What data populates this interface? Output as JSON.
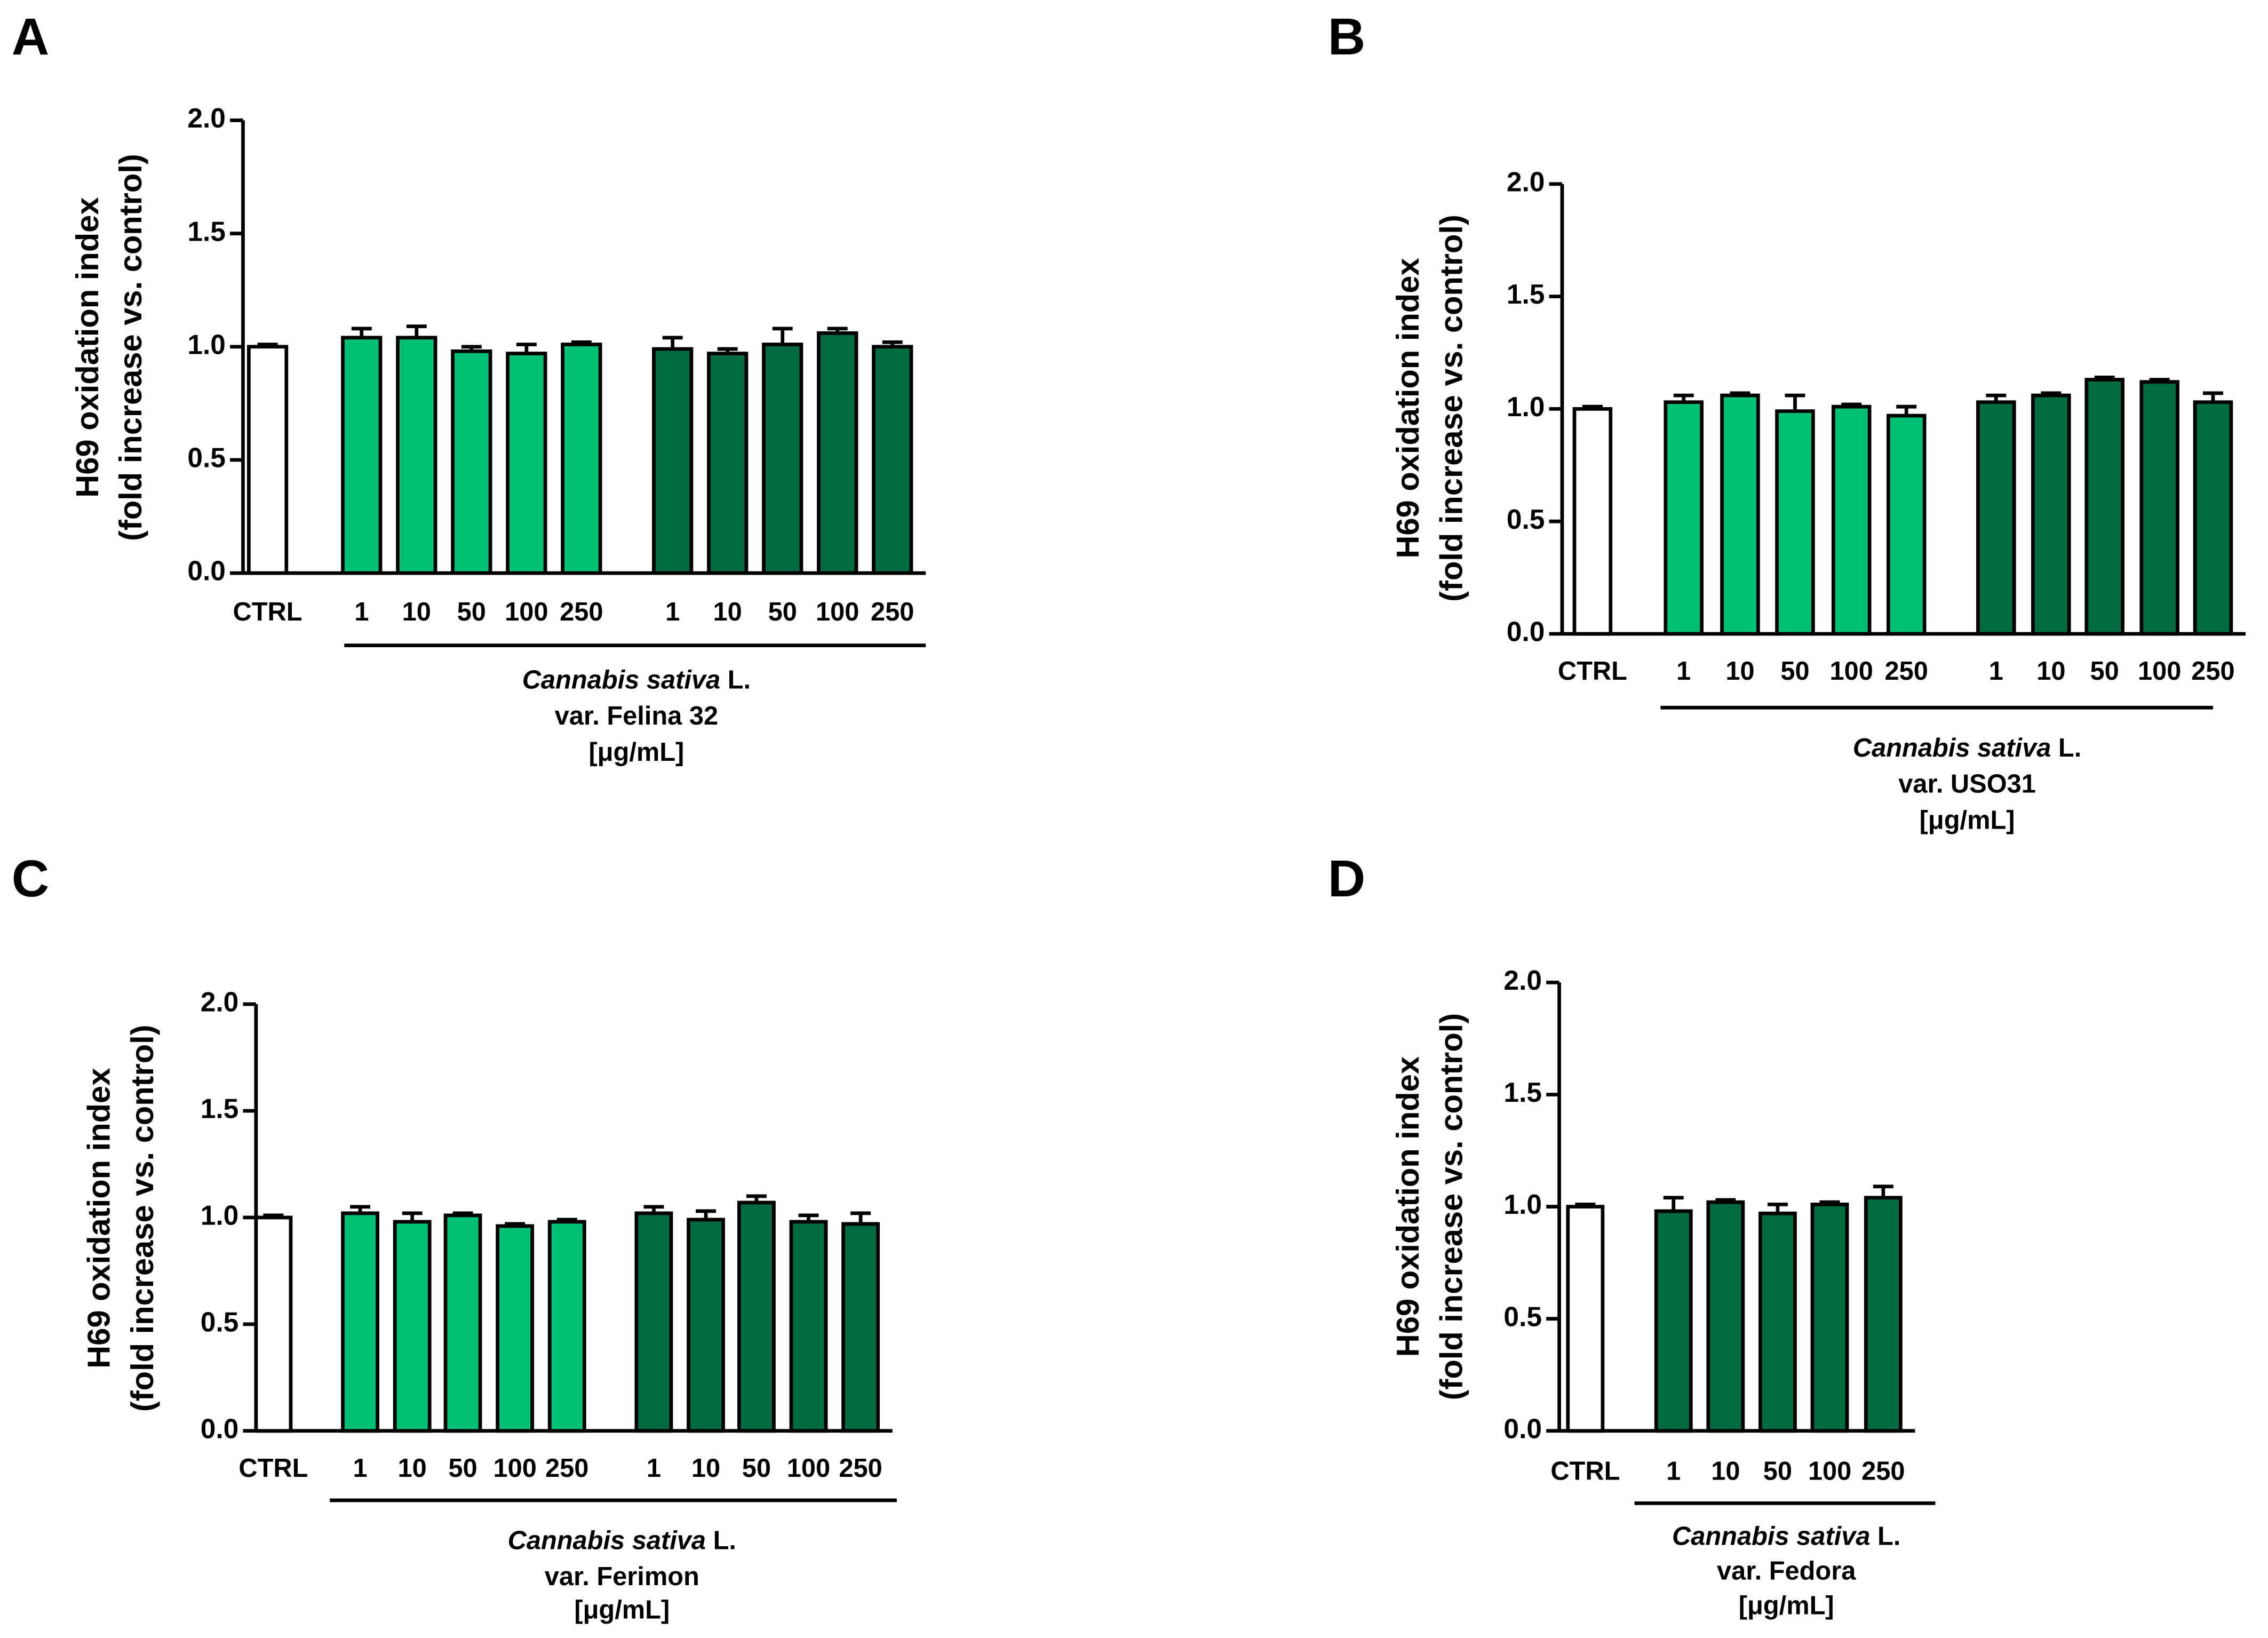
{
  "chart_data": [
    {
      "type": "bar",
      "panel": "A",
      "ylabel": [
        "H69 oxidation index",
        "(fold increase vs. control)"
      ],
      "categories": [
        "CTRL",
        "1",
        "10",
        "50",
        "100",
        "250",
        "1",
        "10",
        "50",
        "100",
        "250"
      ],
      "values": [
        1.0,
        1.04,
        1.04,
        0.98,
        0.97,
        1.01,
        0.99,
        0.97,
        1.01,
        1.06,
        1.0
      ],
      "errors": [
        0.01,
        0.04,
        0.05,
        0.02,
        0.04,
        0.01,
        0.05,
        0.02,
        0.07,
        0.02,
        0.02
      ],
      "colors": [
        "#ffffff",
        "#00c176",
        "#00c176",
        "#00c176",
        "#00c176",
        "#00c176",
        "#006a40",
        "#006a40",
        "#006a40",
        "#006a40",
        "#006a40"
      ],
      "ylim": [
        0,
        2
      ],
      "yticks": [
        {
          "value": 0,
          "label": "0.0"
        },
        0.5,
        {
          "value": 1,
          "label": "1.0"
        },
        1.5,
        {
          "value": 2,
          "label": "2.0"
        }
      ],
      "xlabel": {
        "species": "Cannabis sativa",
        "authority": "L.",
        "variety": "var. Felina 32",
        "unit": "[μg/mL]"
      }
    },
    {
      "type": "bar",
      "panel": "B",
      "ylabel": [
        "H69 oxidation index",
        "(fold increase vs. control)"
      ],
      "categories": [
        "CTRL",
        "1",
        "10",
        "50",
        "100",
        "250",
        "1",
        "10",
        "50",
        "100",
        "250"
      ],
      "values": [
        1.0,
        1.03,
        1.06,
        0.99,
        1.01,
        0.97,
        1.03,
        1.06,
        1.13,
        1.12,
        1.03
      ],
      "errors": [
        0.01,
        0.03,
        0.01,
        0.07,
        0.01,
        0.04,
        0.03,
        0.01,
        0.01,
        0.01,
        0.04
      ],
      "colors": [
        "#ffffff",
        "#00c176",
        "#00c176",
        "#00c176",
        "#00c176",
        "#00c176",
        "#006a40",
        "#006a40",
        "#006a40",
        "#006a40",
        "#006a40"
      ],
      "ylim": [
        0,
        2
      ],
      "yticks": [
        {
          "value": 0,
          "label": "0.0"
        },
        0.5,
        {
          "value": 1,
          "label": "1.0"
        },
        1.5,
        {
          "value": 2,
          "label": "2.0"
        }
      ],
      "xlabel": {
        "species": "Cannabis sativa",
        "authority": "L.",
        "variety": "var. USO31",
        "unit": "[μg/mL]"
      }
    },
    {
      "type": "bar",
      "panel": "C",
      "ylabel": [
        "H69 oxidation index",
        "(fold increase vs. control)"
      ],
      "categories": [
        "CTRL",
        "1",
        "10",
        "50",
        "100",
        "250",
        "1",
        "10",
        "50",
        "100",
        "250"
      ],
      "values": [
        1.0,
        1.02,
        0.98,
        1.01,
        0.96,
        0.98,
        1.02,
        0.99,
        1.07,
        0.98,
        0.97
      ],
      "errors": [
        0.01,
        0.03,
        0.04,
        0.01,
        0.01,
        0.01,
        0.03,
        0.04,
        0.03,
        0.03,
        0.05
      ],
      "colors": [
        "#ffffff",
        "#00c176",
        "#00c176",
        "#00c176",
        "#00c176",
        "#00c176",
        "#006a40",
        "#006a40",
        "#006a40",
        "#006a40",
        "#006a40"
      ],
      "ylim": [
        0,
        2
      ],
      "yticks": [
        {
          "value": 0,
          "label": "0.0"
        },
        0.5,
        {
          "value": 1,
          "label": "1.0"
        },
        1.5,
        {
          "value": 2,
          "label": "2.0"
        }
      ],
      "xlabel": {
        "species": "Cannabis sativa",
        "authority": "L.",
        "variety": "var. Ferimon",
        "unit": "[μg/mL]"
      }
    },
    {
      "type": "bar",
      "panel": "D",
      "ylabel": [
        "H69 oxidation index",
        "(fold increase vs. control)"
      ],
      "categories": [
        "CTRL",
        "1",
        "10",
        "50",
        "100",
        "250"
      ],
      "values": [
        1.0,
        0.98,
        1.02,
        0.97,
        1.01,
        1.04
      ],
      "errors": [
        0.01,
        0.06,
        0.01,
        0.04,
        0.01,
        0.05
      ],
      "colors": [
        "#ffffff",
        "#006a40",
        "#006a40",
        "#006a40",
        "#006a40",
        "#006a40"
      ],
      "ylim": [
        0,
        2
      ],
      "yticks": [
        {
          "value": 0,
          "label": "0.0"
        },
        0.5,
        {
          "value": 1,
          "label": "1.0"
        },
        1.5,
        {
          "value": 2,
          "label": "2.0"
        }
      ],
      "xlabel": {
        "species": "Cannabis sativa",
        "authority": "L.",
        "variety": "var. Fedora",
        "unit": "[μg/mL]"
      }
    }
  ]
}
